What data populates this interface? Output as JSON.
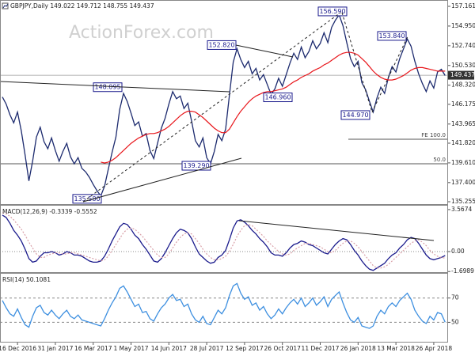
{
  "chart_data": [
    {
      "type": "line",
      "title": "GBPJPY,Daily  149.022 149.712 148.755 149.437",
      "watermark": "ActionForex.com",
      "series": [
        {
          "color": "#1c2a6e",
          "values": [
            147.0,
            146.2,
            145.0,
            144.1,
            145.3,
            143.2,
            140.5,
            137.6,
            139.8,
            142.5,
            143.6,
            142.0,
            141.2,
            142.4,
            141.0,
            139.8,
            140.9,
            141.8,
            140.3,
            139.5,
            140.2,
            139.0,
            138.6,
            138.0,
            137.2,
            136.5,
            135.9,
            137.0,
            138.9,
            140.8,
            142.5,
            145.6,
            147.4,
            146.5,
            145.2,
            143.8,
            144.2,
            142.6,
            142.9,
            141.0,
            140.1,
            141.8,
            143.5,
            144.6,
            146.2,
            147.6,
            146.8,
            147.1,
            145.7,
            146.3,
            144.3,
            142.1,
            141.4,
            142.4,
            140.2,
            139.5,
            140.9,
            142.8,
            142.1,
            143.4,
            147.2,
            150.9,
            152.4,
            151.2,
            150.3,
            151.0,
            149.6,
            150.2,
            148.9,
            149.5,
            148.4,
            147.3,
            147.9,
            149.1,
            148.2,
            149.5,
            150.8,
            151.9,
            151.2,
            152.6,
            151.4,
            152.1,
            153.3,
            152.4,
            153.0,
            154.2,
            153.1,
            154.8,
            155.6,
            156.2,
            155.0,
            153.1,
            151.3,
            150.4,
            151.0,
            148.6,
            147.8,
            146.5,
            145.3,
            146.9,
            148.1,
            147.4,
            149.2,
            150.4,
            149.8,
            151.3,
            152.4,
            153.5,
            152.7,
            151.0,
            149.6,
            148.5,
            147.6,
            148.8,
            148.0,
            149.8,
            150.1,
            149.4
          ]
        },
        {
          "color": "#e8161b",
          "values": [
            null,
            null,
            null,
            null,
            null,
            null,
            null,
            null,
            null,
            null,
            null,
            null,
            null,
            null,
            null,
            null,
            null,
            null,
            null,
            null,
            null,
            null,
            null,
            null,
            null,
            null,
            139.7,
            139.6,
            139.7,
            139.9,
            140.2,
            140.6,
            141.0,
            141.4,
            141.8,
            142.1,
            142.4,
            142.6,
            142.8,
            142.9,
            142.9,
            143.0,
            143.2,
            143.4,
            143.7,
            144.1,
            144.5,
            144.9,
            145.2,
            145.4,
            145.4,
            145.3,
            145.0,
            144.7,
            144.3,
            143.9,
            143.5,
            143.2,
            143.0,
            143.0,
            143.4,
            144.1,
            144.8,
            145.4,
            145.9,
            146.4,
            146.8,
            147.1,
            147.3,
            147.5,
            147.6,
            147.6,
            147.7,
            147.8,
            147.9,
            148.1,
            148.4,
            148.7,
            148.9,
            149.2,
            149.4,
            149.6,
            149.9,
            150.1,
            150.3,
            150.6,
            150.8,
            151.1,
            151.4,
            151.7,
            151.9,
            152.0,
            152.0,
            151.9,
            151.7,
            151.3,
            150.9,
            150.4,
            149.9,
            149.5,
            149.2,
            149.0,
            148.9,
            148.9,
            149.0,
            149.2,
            149.4,
            149.7,
            150.0,
            150.2,
            150.3,
            150.3,
            150.2,
            150.1,
            150.0,
            149.9,
            149.9,
            149.9
          ]
        }
      ],
      "ylim": [
        134.99,
        157.87
      ],
      "yticks": [
        135.255,
        {
          "value": 137.4,
          "label": "137.400"
        },
        {
          "value": 139.61,
          "label": "139.610"
        },
        {
          "value": 141.82,
          "label": "141.820"
        },
        143.965,
        146.175,
        {
          "value": 148.32,
          "label": "148.320"
        },
        {
          "value": 150.53,
          "label": "150.530"
        },
        {
          "value": 152.74,
          "label": "152.740"
        },
        {
          "value": 154.95,
          "label": "154.950"
        },
        157.161
      ],
      "last_price": 149.437,
      "annotations": [
        {
          "value": 156.59,
          "label": "156.590"
        },
        {
          "value": 153.84,
          "label": "153.840"
        },
        {
          "value": 152.82,
          "label": "152.820"
        },
        {
          "value": 148.095,
          "label": "148.095"
        },
        {
          "value": 146.96,
          "label": "146.960"
        },
        {
          "value": 144.97,
          "label": "144.970"
        },
        {
          "value": 139.29,
          "label": "139.290"
        },
        {
          "value": 135.58,
          "label": "135.580"
        }
      ],
      "levels": [
        {
          "value": 142.26,
          "label": "FE 100.0"
        },
        {
          "value": 139.51,
          "label": "50.0"
        }
      ]
    },
    {
      "type": "line",
      "title": "MACD(12,26,9) -0.3339 -0.5552",
      "series": [
        {
          "color": "#1a1a8c",
          "values": [
            3.1,
            2.9,
            2.4,
            1.8,
            1.4,
            0.9,
            0.2,
            -0.6,
            -0.9,
            -0.8,
            -0.4,
            -0.1,
            -0.1,
            0.0,
            -0.1,
            -0.3,
            -0.2,
            0.0,
            -0.1,
            -0.3,
            -0.3,
            -0.4,
            -0.6,
            -0.8,
            -0.9,
            -0.9,
            -0.8,
            -0.4,
            0.2,
            0.9,
            1.5,
            2.1,
            2.4,
            2.3,
            1.9,
            1.4,
            1.1,
            0.6,
            0.2,
            -0.3,
            -0.8,
            -0.9,
            -0.6,
            -0.1,
            0.5,
            1.1,
            1.6,
            1.9,
            1.8,
            1.6,
            1.1,
            0.4,
            -0.2,
            -0.5,
            -0.8,
            -1.0,
            -0.9,
            -0.5,
            -0.3,
            0.1,
            1.0,
            2.0,
            2.6,
            2.7,
            2.5,
            2.2,
            1.8,
            1.5,
            1.1,
            0.8,
            0.4,
            -0.1,
            -0.3,
            -0.3,
            -0.4,
            -0.1,
            0.3,
            0.6,
            0.7,
            0.9,
            0.8,
            0.6,
            0.5,
            0.3,
            0.1,
            -0.1,
            -0.2,
            0.2,
            0.6,
            0.9,
            1.1,
            1.0,
            0.6,
            0.1,
            -0.3,
            -0.8,
            -1.2,
            -1.5,
            -1.6,
            -1.4,
            -1.2,
            -1.0,
            -0.6,
            -0.3,
            -0.1,
            0.3,
            0.6,
            1.0,
            1.2,
            1.1,
            0.7,
            0.2,
            -0.3,
            -0.6,
            -0.7,
            -0.6,
            -0.5,
            -0.34
          ]
        },
        {
          "color": "#d9a0a8",
          "dash": true,
          "values": [
            3.3,
            3.2,
            3.0,
            2.7,
            2.3,
            1.9,
            1.4,
            0.8,
            0.3,
            -0.2,
            -0.5,
            -0.5,
            -0.3,
            -0.2,
            -0.1,
            -0.1,
            -0.2,
            -0.2,
            -0.1,
            -0.1,
            -0.2,
            -0.3,
            -0.4,
            -0.5,
            -0.6,
            -0.7,
            -0.8,
            -0.7,
            -0.4,
            0.1,
            0.6,
            1.1,
            1.6,
            1.9,
            2.0,
            1.9,
            1.6,
            1.3,
            0.9,
            0.5,
            0.1,
            -0.3,
            -0.5,
            -0.5,
            -0.2,
            0.3,
            0.8,
            1.2,
            1.5,
            1.6,
            1.5,
            1.1,
            0.7,
            0.2,
            -0.2,
            -0.5,
            -0.7,
            -0.7,
            -0.6,
            -0.4,
            0.0,
            0.6,
            1.3,
            1.8,
            2.2,
            2.3,
            2.2,
            1.9,
            1.6,
            1.3,
            0.9,
            0.6,
            0.3,
            0.0,
            -0.2,
            -0.3,
            -0.2,
            0.1,
            0.3,
            0.5,
            0.7,
            0.7,
            0.6,
            0.5,
            0.4,
            0.2,
            0.0,
            -0.1,
            0.1,
            0.4,
            0.7,
            0.9,
            0.9,
            0.7,
            0.4,
            0.0,
            -0.4,
            -0.8,
            -1.2,
            -1.4,
            -1.4,
            -1.3,
            -1.1,
            -0.8,
            -0.5,
            -0.2,
            0.1,
            0.4,
            0.7,
            0.9,
            1.0,
            0.8,
            0.5,
            0.1,
            -0.2,
            -0.4,
            -0.5,
            -0.56
          ]
        }
      ],
      "ylim": [
        -1.75,
        3.9
      ],
      "yticks": [
        -1.6989,
        {
          "value": 0,
          "label": "0.00"
        },
        3.5674
      ],
      "reference_lines": [
        0
      ]
    },
    {
      "type": "line",
      "title": "RSI(14) 50.1081",
      "categories": [
        null,
        null,
        null,
        null,
        "16 Dec 2016",
        null,
        null,
        null,
        null,
        null,
        null,
        null,
        null,
        null,
        "31 Jan 2017",
        null,
        null,
        null,
        null,
        null,
        null,
        null,
        null,
        null,
        "16 Mar 2017",
        null,
        null,
        null,
        null,
        null,
        null,
        null,
        null,
        null,
        "1 May 2017",
        null,
        null,
        null,
        null,
        null,
        null,
        null,
        null,
        null,
        "14 Jun 2017",
        null,
        null,
        null,
        null,
        null,
        null,
        null,
        null,
        null,
        "28 Jul 2017",
        null,
        null,
        null,
        null,
        null,
        null,
        null,
        null,
        null,
        "12 Sep 2017",
        null,
        null,
        null,
        null,
        null,
        null,
        null,
        null,
        null,
        "26 Oct 2017",
        null,
        null,
        null,
        null,
        null,
        null,
        null,
        null,
        null,
        "11 Dec 2017",
        null,
        null,
        null,
        null,
        null,
        null,
        null,
        null,
        null,
        "26 Jan 2018",
        null,
        null,
        null,
        null,
        null,
        null,
        null,
        null,
        null,
        "13 Mar 2018",
        null,
        null,
        null,
        null,
        null,
        null,
        null,
        null,
        null,
        "26 Apr 2018",
        null,
        null,
        null
      ],
      "series": [
        {
          "color": "#3d8fe0",
          "values": [
            68,
            62,
            57,
            55,
            61,
            54,
            48,
            46,
            55,
            62,
            64,
            58,
            56,
            60,
            56,
            53,
            57,
            60,
            55,
            53,
            56,
            52,
            51,
            50,
            49,
            48,
            47,
            53,
            60,
            66,
            71,
            78,
            80,
            75,
            69,
            63,
            65,
            58,
            59,
            53,
            51,
            57,
            62,
            65,
            70,
            73,
            68,
            69,
            63,
            65,
            57,
            52,
            50,
            55,
            49,
            48,
            54,
            60,
            57,
            62,
            72,
            80,
            82,
            74,
            69,
            71,
            64,
            66,
            60,
            63,
            57,
            53,
            56,
            61,
            57,
            62,
            66,
            69,
            65,
            70,
            63,
            66,
            70,
            64,
            67,
            71,
            63,
            69,
            72,
            75,
            66,
            58,
            52,
            50,
            54,
            47,
            46,
            45,
            47,
            55,
            60,
            57,
            63,
            66,
            63,
            68,
            71,
            74,
            69,
            60,
            55,
            51,
            49,
            55,
            52,
            58,
            57,
            50.1
          ]
        }
      ],
      "ylim": [
        34,
        90
      ],
      "yticks": [
        50,
        70
      ],
      "grid": true,
      "grid_style": "dashed"
    }
  ]
}
